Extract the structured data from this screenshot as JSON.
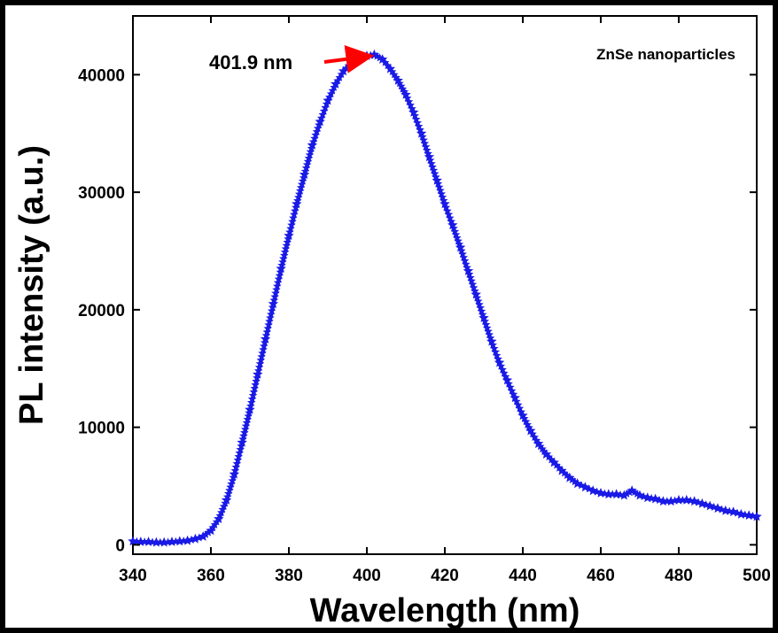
{
  "chart_data": {
    "type": "scatter",
    "marker": "star",
    "color": "#1a1ae6",
    "xlabel": "Wavelength (nm)",
    "ylabel": "PL intensity (a.u.)",
    "xlim": [
      340,
      500
    ],
    "ylim": [
      -800,
      45000
    ],
    "x_ticks": [
      340,
      360,
      380,
      400,
      420,
      440,
      460,
      480,
      500
    ],
    "y_ticks": [
      0,
      10000,
      20000,
      30000,
      40000
    ],
    "legend": "ZnSe nanoparticles",
    "legend_placement": "top-right",
    "annotation": {
      "text": "401.9 nm",
      "x": 401.9,
      "y": 41700,
      "arrow_color": "#ff0000"
    },
    "series": [
      {
        "x": [
          340,
          342,
          344,
          346,
          348,
          350,
          352,
          354,
          356,
          358,
          360,
          362,
          364,
          366,
          368,
          370,
          372,
          374,
          376,
          378,
          380,
          382,
          384,
          386,
          388,
          390,
          392,
          394,
          396,
          398,
          400,
          401.9,
          404,
          406,
          408,
          410,
          412,
          414,
          416,
          418,
          420,
          422,
          424,
          426,
          428,
          430,
          432,
          434,
          436,
          438,
          440,
          442,
          444,
          446,
          448,
          450,
          452,
          454,
          456,
          458,
          460,
          462,
          464,
          466,
          468,
          470,
          472,
          474,
          476,
          478,
          480,
          482,
          484,
          486,
          488,
          490,
          492,
          494,
          496,
          498,
          500
        ],
        "y": [
          300,
          250,
          250,
          200,
          200,
          250,
          300,
          350,
          500,
          700,
          1200,
          2200,
          3800,
          6000,
          8700,
          11500,
          14500,
          17500,
          20500,
          23500,
          26300,
          29000,
          31500,
          34000,
          36000,
          37800,
          39200,
          40300,
          41000,
          41400,
          41600,
          41700,
          41300,
          40500,
          39500,
          38300,
          36800,
          35000,
          33000,
          31000,
          29000,
          27200,
          25300,
          23300,
          21300,
          19300,
          17300,
          15500,
          14000,
          12500,
          11000,
          9700,
          8600,
          7700,
          7000,
          6300,
          5700,
          5200,
          4900,
          4600,
          4400,
          4300,
          4300,
          4200,
          4600,
          4200,
          4000,
          3900,
          3700,
          3700,
          3800,
          3800,
          3700,
          3500,
          3300,
          3100,
          2900,
          2800,
          2600,
          2500,
          2400
        ]
      }
    ]
  }
}
